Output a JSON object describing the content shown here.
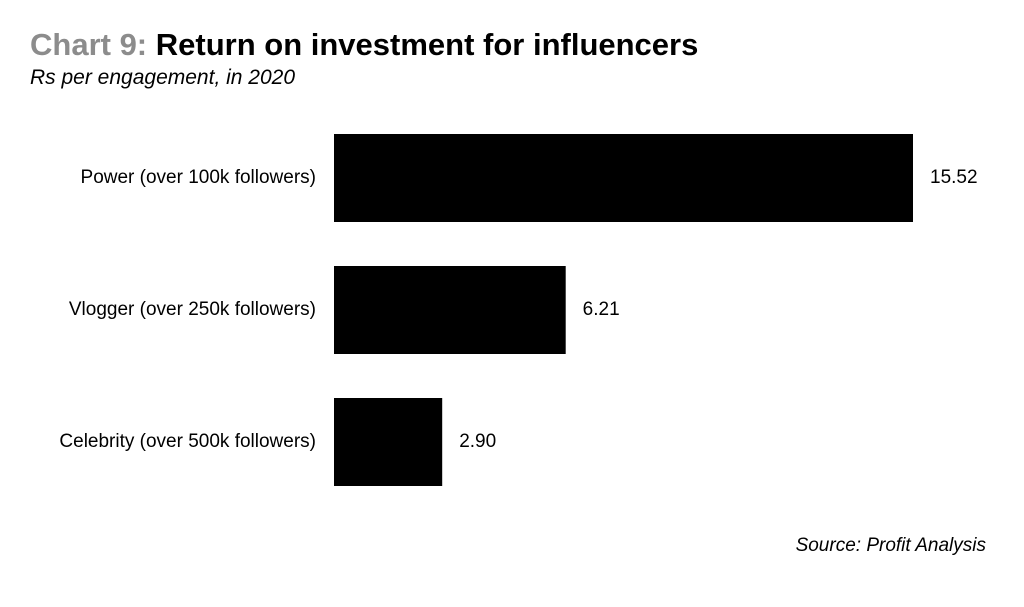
{
  "chart_data": {
    "type": "bar",
    "orientation": "horizontal",
    "title_prefix": "Chart 9:",
    "title": "Return on investment for influencers",
    "subtitle": "Rs per engagement, in 2020",
    "source": "Source: Profit Analysis",
    "categories": [
      "Power (over 100k followers)",
      "Vlogger (over 250k followers)",
      "Celebrity (over 500k followers)"
    ],
    "values": [
      15.52,
      6.21,
      2.9
    ],
    "value_labels": [
      "15.52",
      "6.21",
      "2.90"
    ],
    "xlim": [
      0,
      15.52
    ],
    "bar_color": "#000000",
    "title_prefix_color": "#8c8c8c",
    "grid": false,
    "legend": "none"
  }
}
